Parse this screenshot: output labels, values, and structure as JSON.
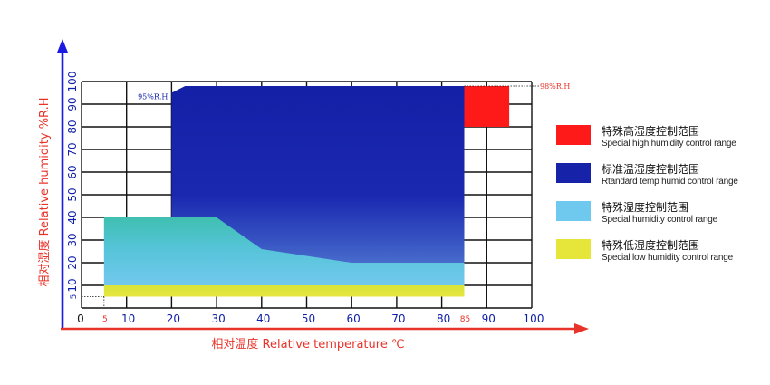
{
  "chart_data": {
    "type": "area",
    "title": "",
    "xlabel": "相对温度 Relative temperature ℃",
    "ylabel": "相对湿度 Relative humidity %R.H",
    "xlim": [
      0,
      100
    ],
    "ylim": [
      0,
      100
    ],
    "x_ticks": [
      "0",
      "10",
      "20",
      "30",
      "40",
      "50",
      "60",
      "70",
      "80",
      "90",
      "100"
    ],
    "x_ticks_small": [
      {
        "value": 5,
        "label": "5"
      },
      {
        "value": 85,
        "label": "85"
      }
    ],
    "y_ticks": [
      "10",
      "20",
      "30",
      "40",
      "50",
      "60",
      "70",
      "80",
      "90",
      "100"
    ],
    "y_ticks_small": [
      {
        "value": 5,
        "label": "5"
      }
    ],
    "grid": true,
    "legend_position": "right",
    "annotations": [
      {
        "text": "95%R.H",
        "x": 20,
        "y": 95,
        "side": "left"
      },
      {
        "text": "98%R.H",
        "x": 85,
        "y": 98,
        "side": "right"
      }
    ],
    "series": [
      {
        "name_cn": "特殊高湿度控制范围",
        "name_en": "Special high humidity control range",
        "color": "#ff1a1a",
        "polygon": [
          [
            85,
            80
          ],
          [
            85,
            98
          ],
          [
            95,
            98
          ],
          [
            95,
            80
          ]
        ]
      },
      {
        "name_cn": "标准温湿度控制范围",
        "name_en": "Rtandard temp humid control range",
        "color": "#1622a8",
        "polygon": [
          [
            20,
            10
          ],
          [
            20,
            95
          ],
          [
            23,
            98
          ],
          [
            85,
            98
          ],
          [
            85,
            10
          ]
        ]
      },
      {
        "name_cn": "特殊湿度控制范围",
        "name_en": "Special humidity control range",
        "color": "#6fc8ee",
        "polygon": [
          [
            5,
            10
          ],
          [
            5,
            40
          ],
          [
            30,
            40
          ],
          [
            40,
            26
          ],
          [
            60,
            20
          ],
          [
            85,
            20
          ],
          [
            85,
            10
          ]
        ]
      },
      {
        "name_cn": "特殊低湿度控制范围",
        "name_en": "Special low humidity control range",
        "color": "#e6e63a",
        "polygon": [
          [
            5,
            5
          ],
          [
            5,
            10
          ],
          [
            85,
            10
          ],
          [
            85,
            5
          ]
        ]
      }
    ]
  }
}
